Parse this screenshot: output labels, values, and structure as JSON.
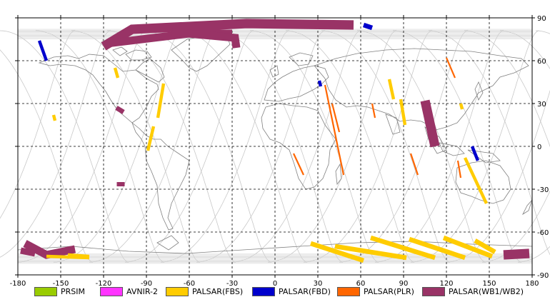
{
  "axes": {
    "x_ticks": [
      "-180",
      "-150",
      "-120",
      "-90",
      "-60",
      "-30",
      "0",
      "30",
      "60",
      "90",
      "120",
      "150",
      "180"
    ],
    "x_values": [
      -180,
      -150,
      -120,
      -90,
      -60,
      -30,
      0,
      30,
      60,
      90,
      120,
      150,
      180
    ],
    "y_ticks": [
      "90",
      "60",
      "30",
      "0",
      "-30",
      "-60",
      "-90"
    ],
    "y_values": [
      90,
      60,
      30,
      0,
      -30,
      -60,
      -90
    ],
    "xlim": [
      -180,
      180
    ],
    "ylim": [
      -90,
      90
    ],
    "grid": "dashed"
  },
  "legend": [
    {
      "label": "PRSIM",
      "color": "#99cc00",
      "key": "prsim"
    },
    {
      "label": "AVNIR-2",
      "color": "#ff33ff",
      "key": "avnir2"
    },
    {
      "label": "PALSAR(FBS)",
      "color": "#ffcc00",
      "key": "fbs"
    },
    {
      "label": "PALSAR(FBD)",
      "color": "#0000cc",
      "key": "fbd"
    },
    {
      "label": "PALSAR(PLR)",
      "color": "#ff6600",
      "key": "plr"
    },
    {
      "label": "PALSAR(WB1/WB2)",
      "color": "#993366",
      "key": "wb"
    }
  ],
  "segments": [
    {
      "mode": "wb",
      "pts": [
        [
          -120,
          70
        ],
        [
          -100,
          82
        ],
        [
          -20,
          86
        ],
        [
          55,
          85
        ]
      ],
      "w": 6
    },
    {
      "mode": "wb",
      "pts": [
        [
          -118,
          72
        ],
        [
          -60,
          79
        ],
        [
          -30,
          79
        ]
      ],
      "w": 5
    },
    {
      "mode": "wb",
      "pts": [
        [
          -72,
          80
        ],
        [
          -28,
          76
        ],
        [
          -27,
          69
        ]
      ],
      "w": 5
    },
    {
      "mode": "wb",
      "pts": [
        [
          -108,
          -25
        ],
        [
          -108,
          -28
        ]
      ],
      "w": 5
    },
    {
      "mode": "wb",
      "pts": [
        [
          -111,
          27
        ],
        [
          -106,
          24
        ]
      ],
      "w": 3
    },
    {
      "mode": "wb",
      "pts": [
        [
          105,
          32
        ],
        [
          112,
          0
        ]
      ],
      "w": 6
    },
    {
      "mode": "wb",
      "pts": [
        [
          -175,
          -68
        ],
        [
          -160,
          -76
        ],
        [
          -140,
          -72
        ]
      ],
      "w": 5
    },
    {
      "mode": "wb",
      "pts": [
        [
          -178,
          -73
        ],
        [
          -168,
          -75
        ]
      ],
      "w": 4
    },
    {
      "mode": "wb",
      "pts": [
        [
          160,
          -76
        ],
        [
          178,
          -75
        ]
      ],
      "w": 6
    },
    {
      "mode": "fbd",
      "pts": [
        [
          -165,
          74
        ],
        [
          -160,
          60
        ]
      ],
      "w": 2
    },
    {
      "mode": "fbd",
      "pts": [
        [
          62,
          85
        ],
        [
          68,
          83
        ]
      ],
      "w": 3
    },
    {
      "mode": "fbd",
      "pts": [
        [
          138,
          0
        ],
        [
          142,
          -10
        ]
      ],
      "w": 2
    },
    {
      "mode": "fbd",
      "pts": [
        [
          31,
          46
        ],
        [
          32,
          42
        ]
      ],
      "w": 2
    },
    {
      "mode": "fbs",
      "pts": [
        [
          -112,
          55
        ],
        [
          -110,
          48
        ]
      ],
      "w": 2
    },
    {
      "mode": "fbs",
      "pts": [
        [
          -78,
          44
        ],
        [
          -82,
          20
        ]
      ],
      "w": 2
    },
    {
      "mode": "fbs",
      "pts": [
        [
          -85,
          14
        ],
        [
          -89,
          -3
        ]
      ],
      "w": 2
    },
    {
      "mode": "fbs",
      "pts": [
        [
          -155,
          22
        ],
        [
          -154,
          18
        ]
      ],
      "w": 2
    },
    {
      "mode": "fbs",
      "pts": [
        [
          80,
          47
        ],
        [
          83,
          33
        ]
      ],
      "w": 2
    },
    {
      "mode": "fbs",
      "pts": [
        [
          88,
          33
        ],
        [
          91,
          15
        ]
      ],
      "w": 2
    },
    {
      "mode": "fbs",
      "pts": [
        [
          133,
          -8
        ],
        [
          148,
          -40
        ]
      ],
      "w": 2
    },
    {
      "mode": "fbs",
      "pts": [
        [
          130,
          30
        ],
        [
          131,
          26
        ]
      ],
      "w": 2
    },
    {
      "mode": "fbs",
      "pts": [
        [
          -160,
          -77
        ],
        [
          -130,
          -78
        ]
      ],
      "w": 2
    },
    {
      "mode": "fbs",
      "pts": [
        [
          -145,
          -76
        ],
        [
          -130,
          -77
        ]
      ],
      "w": 2
    },
    {
      "mode": "fbs",
      "pts": [
        [
          25,
          -68
        ],
        [
          62,
          -80
        ]
      ],
      "w": 3
    },
    {
      "mode": "fbs",
      "pts": [
        [
          42,
          -70
        ],
        [
          92,
          -78
        ]
      ],
      "w": 3
    },
    {
      "mode": "fbs",
      "pts": [
        [
          67,
          -64
        ],
        [
          112,
          -78
        ]
      ],
      "w": 3
    },
    {
      "mode": "fbs",
      "pts": [
        [
          94,
          -65
        ],
        [
          133,
          -78
        ]
      ],
      "w": 3
    },
    {
      "mode": "fbs",
      "pts": [
        [
          118,
          -64
        ],
        [
          152,
          -77
        ]
      ],
      "w": 3
    },
    {
      "mode": "fbs",
      "pts": [
        [
          140,
          -66
        ],
        [
          154,
          -74
        ]
      ],
      "w": 3
    },
    {
      "mode": "plr",
      "pts": [
        [
          120,
          62
        ],
        [
          126,
          48
        ]
      ],
      "w": 1
    },
    {
      "mode": "plr",
      "pts": [
        [
          35,
          43
        ],
        [
          48,
          -20
        ]
      ],
      "w": 1
    },
    {
      "mode": "plr",
      "pts": [
        [
          13,
          -5
        ],
        [
          20,
          -20
        ]
      ],
      "w": 1
    },
    {
      "mode": "plr",
      "pts": [
        [
          40,
          30
        ],
        [
          45,
          10
        ]
      ],
      "w": 1
    },
    {
      "mode": "plr",
      "pts": [
        [
          95,
          -5
        ],
        [
          100,
          -20
        ]
      ],
      "w": 1
    },
    {
      "mode": "plr",
      "pts": [
        [
          68,
          30
        ],
        [
          70,
          20
        ]
      ],
      "w": 1
    },
    {
      "mode": "plr",
      "pts": [
        [
          128,
          -10
        ],
        [
          130,
          -22
        ]
      ],
      "w": 1
    }
  ]
}
